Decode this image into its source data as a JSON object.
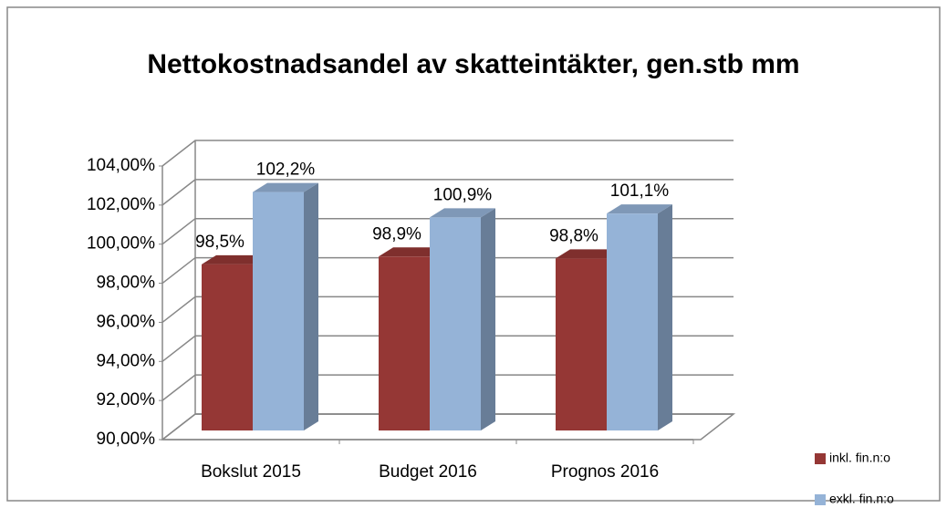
{
  "chart_data": {
    "type": "bar3d",
    "title": "Nettokostnadsandel av skatteintäkter, gen.stb mm",
    "categories": [
      "Bokslut  2015",
      "Budget 2016",
      "Prognos 2016"
    ],
    "series": [
      {
        "name": "inkl. fin.n:o",
        "color": "#953735",
        "values": [
          98.5,
          98.9,
          98.8
        ],
        "value_labels": [
          "98,5%",
          "98,9%",
          "98,8%"
        ]
      },
      {
        "name": "exkl. fin.n:o",
        "color": "#95b3d7",
        "values": [
          102.2,
          100.9,
          101.1
        ],
        "value_labels": [
          "102,2%",
          "100,9%",
          "101,1%"
        ]
      }
    ],
    "ylim": [
      90,
      104
    ],
    "yticks": [
      {
        "value": 90,
        "label": "90,00%"
      },
      {
        "value": 92,
        "label": "92,00%"
      },
      {
        "value": 94,
        "label": "94,00%"
      },
      {
        "value": 96,
        "label": "96,00%"
      },
      {
        "value": 98,
        "label": "98,00%"
      },
      {
        "value": 100,
        "label": "100,00%"
      },
      {
        "value": 102,
        "label": "102,00%"
      },
      {
        "value": 104,
        "label": "104,00%"
      }
    ],
    "grid": true,
    "legend": "right"
  }
}
